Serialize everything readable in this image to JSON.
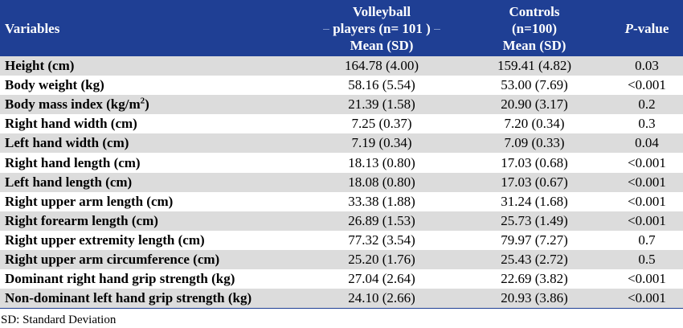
{
  "header": {
    "variables": "Variables",
    "group1_line1": "Volleyball",
    "group1_line2": "players (n= 101 )",
    "group1_line3": "Mean (SD)",
    "group2_line1": "Controls",
    "group2_line2": "(n=100)",
    "group2_line3": "Mean (SD)",
    "pvalue_italic": "P",
    "pvalue_rest": "-value"
  },
  "rows": [
    {
      "variable": "Height (cm)",
      "players": "164.78 (4.00)",
      "controls": "159.41 (4.82)",
      "p": "0.03"
    },
    {
      "variable": "Body weight (kg)",
      "players": "58.16 (5.54)",
      "controls": "53.00 (7.69)",
      "p": "<0.001"
    },
    {
      "variable": "Body mass index (kg/m",
      "variable_sup": "2",
      "variable_end": ")",
      "players": "21.39 (1.58)",
      "controls": "20.90 (3.17)",
      "p": "0.2"
    },
    {
      "variable": "Right hand width (cm)",
      "players": "7.25 (0.37)",
      "controls": "7.20 (0.34)",
      "p": "0.3"
    },
    {
      "variable": "Left hand width (cm)",
      "players": "7.19 (0.34)",
      "controls": "7.09 (0.33)",
      "p": "0.04"
    },
    {
      "variable": "Right hand length (cm)",
      "players": "18.13 (0.80)",
      "controls": "17.03 (0.68)",
      "p": "<0.001"
    },
    {
      "variable": "Left hand length (cm)",
      "players": "18.08 (0.80)",
      "controls": "17.03 (0.67)",
      "p": "<0.001"
    },
    {
      "variable": "Right upper arm length (cm)",
      "players": "33.38 (1.88)",
      "controls": "31.24 (1.68)",
      "p": "<0.001"
    },
    {
      "variable": "Right forearm length (cm)",
      "players": "26.89 (1.53)",
      "controls": "25.73 (1.49)",
      "p": "<0.001"
    },
    {
      "variable": "Right upper extremity length (cm)",
      "players": "77.32 (3.54)",
      "controls": "79.97 (7.27)",
      "p": "0.7"
    },
    {
      "variable": "Right upper arm circumference (cm)",
      "players": "25.20 (1.76)",
      "controls": "25.43 (2.72)",
      "p": "0.5"
    },
    {
      "variable": "Dominant right hand grip strength (kg)",
      "players": "27.04 (2.64)",
      "controls": "22.69 (3.82)",
      "p": "<0.001"
    },
    {
      "variable": "Non-dominant left hand grip strength (kg)",
      "players": "24.10 (2.66)",
      "controls": "20.93 (3.86)",
      "p": "<0.001"
    }
  ],
  "footnote": "SD: Standard Deviation",
  "colors": {
    "header_bg": "#1f3f94",
    "header_text": "#ffffff",
    "odd_row_bg": "#dcdcdc",
    "even_row_bg": "#ffffff"
  }
}
